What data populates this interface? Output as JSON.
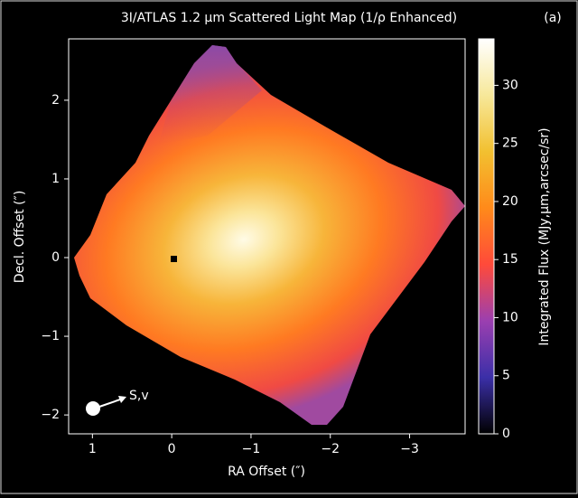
{
  "chart_data": {
    "type": "heatmap",
    "title": "3I/ATLAS 1.2 μm Scattered Light Map (1/ρ Enhanced)",
    "panel_label": "(a)",
    "xlabel": "RA Offset (″)",
    "ylabel": "Decl. Offset (″)",
    "xlim": [
      1.3,
      -3.7
    ],
    "ylim": [
      -2.24,
      2.78
    ],
    "xticks": [
      1,
      0,
      {
        "value": -1,
        "label": "−1"
      },
      {
        "value": -2,
        "label": "−2"
      },
      {
        "value": -3,
        "label": "−3"
      }
    ],
    "yticks": [
      {
        "value": -2,
        "label": "−2"
      },
      {
        "value": -1,
        "label": "−1"
      },
      0,
      1,
      2
    ],
    "colorbar_label": "Integrated Flux (MJy,μm,arcsec/sr)",
    "clim": [
      0,
      34
    ],
    "cticks": [
      0,
      5,
      10,
      15,
      20,
      25,
      30
    ],
    "colormap": [
      "#000000",
      "#3b2fa8",
      "#9b3fb0",
      "#ff4a3a",
      "#ff8a1a",
      "#f2c030",
      "#f7e89a",
      "#ffffff"
    ],
    "annotations": [
      "S,v"
    ]
  }
}
